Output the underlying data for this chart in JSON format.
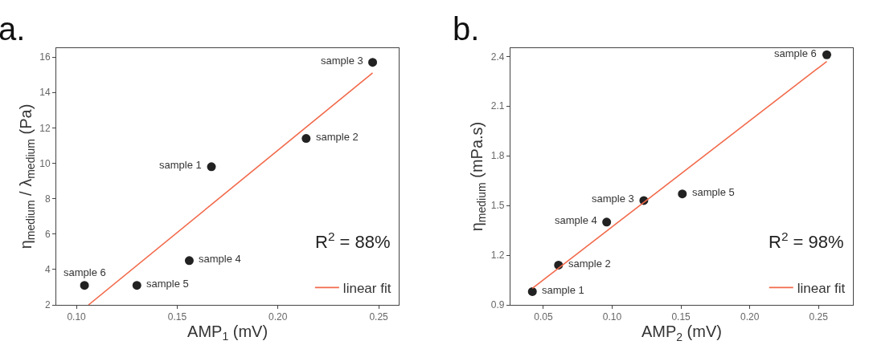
{
  "chart_data": [
    {
      "type": "scatter",
      "title": "a.",
      "xlabel": "AMP$_{1}$ (mV)",
      "ylabel": "η$_{medium}$ / λ$_{medium}$ (Pa)",
      "xlim": [
        0.09,
        0.26
      ],
      "xticks": [
        {
          "value": 0.1,
          "label": "0.10"
        },
        {
          "value": 0.15,
          "label": "0.15"
        },
        {
          "value": 0.2,
          "label": "0.20"
        },
        {
          "value": 0.25,
          "label": "0.25"
        }
      ],
      "ylim": [
        2,
        16.5
      ],
      "yticks": [
        2,
        4,
        6,
        8,
        10,
        12,
        14,
        16
      ],
      "grid": false,
      "legend": "bottom right",
      "series": [
        {
          "marker": "circle",
          "color": "#222222",
          "x": [
            0.167,
            0.214,
            0.247,
            0.156,
            0.13,
            0.104
          ],
          "values": [
            9.8,
            11.4,
            15.7,
            4.5,
            3.1,
            3.1
          ]
        },
        {
          "type": "line",
          "name": "linear fit",
          "color": "#f26a4b",
          "x": [
            0.106,
            0.247
          ],
          "values": [
            2,
            15.1
          ]
        }
      ],
      "annotations": [
        {
          "text": "sample 1",
          "x": 0.167,
          "y": 9.8
        },
        {
          "text": "sample 2",
          "x": 0.214,
          "y": 11.4
        },
        {
          "text": "sample 3",
          "x": 0.247,
          "y": 15.7
        },
        {
          "text": "sample 4",
          "x": 0.156,
          "y": 4.5
        },
        {
          "text": "sample 5",
          "x": 0.13,
          "y": 3.1
        },
        {
          "text": "sample 6",
          "x": 0.104,
          "y": 3.1
        },
        "R$^{2}$ = 88%"
      ]
    },
    {
      "type": "scatter",
      "title": "b.",
      "xlabel": "AMP$_{2}$ (mV)",
      "ylabel": "η$_{medium}$ (mPa.s)",
      "xlim": [
        0.026,
        0.275
      ],
      "xticks": [
        {
          "value": 0.05,
          "label": "0.05"
        },
        {
          "value": 0.1,
          "label": "0.10"
        },
        {
          "value": 0.15,
          "label": "0.15"
        },
        {
          "value": 0.2,
          "label": "0.20"
        },
        {
          "value": 0.25,
          "label": "0.25"
        }
      ],
      "ylim": [
        0.9,
        2.45
      ],
      "yticks": [
        0.9,
        1.2,
        1.5,
        1.8,
        2.1,
        2.4
      ],
      "grid": false,
      "legend": "bottom right",
      "series": [
        {
          "marker": "circle",
          "color": "#222222",
          "x": [
            0.042,
            0.061,
            0.123,
            0.096,
            0.151,
            0.256
          ],
          "values": [
            0.98,
            1.14,
            1.53,
            1.4,
            1.57,
            2.41
          ]
        },
        {
          "type": "line",
          "name": "linear fit",
          "color": "#f26a4b",
          "x": [
            0.042,
            0.256
          ],
          "values": [
            1.0,
            2.37
          ]
        }
      ],
      "annotations": [
        {
          "text": "sample 1",
          "x": 0.042,
          "y": 0.98
        },
        {
          "text": "sample 2",
          "x": 0.061,
          "y": 1.14
        },
        {
          "text": "sample 3",
          "x": 0.123,
          "y": 1.53
        },
        {
          "text": "sample 4",
          "x": 0.096,
          "y": 1.4
        },
        {
          "text": "sample 5",
          "x": 0.151,
          "y": 1.57
        },
        {
          "text": "sample 6",
          "x": 0.256,
          "y": 2.41
        },
        "R$^{2}$ = 98%"
      ]
    }
  ]
}
